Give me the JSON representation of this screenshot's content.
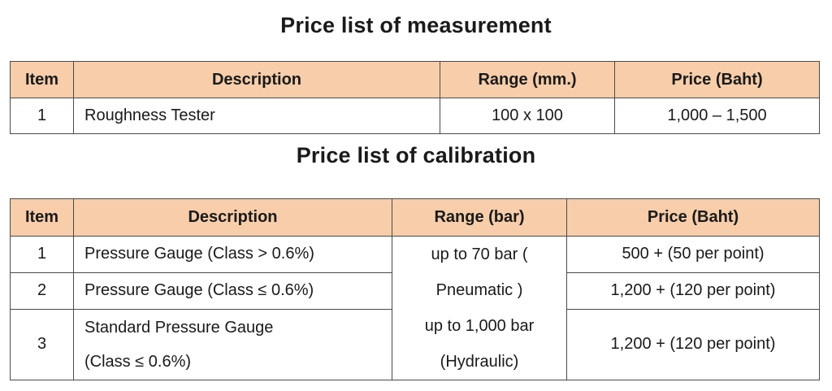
{
  "measurement": {
    "title": "Price list of measurement",
    "headers": [
      "Item",
      "Description",
      "Range (mm.)",
      "Price (Baht)"
    ],
    "rows": [
      {
        "item": "1",
        "description": "Roughness Tester",
        "range": "100 x 100",
        "price": "1,000 – 1,500"
      }
    ]
  },
  "calibration": {
    "title": "Price list of calibration",
    "headers": [
      "Item",
      "Description",
      "Range (bar)",
      "Price (Baht)"
    ],
    "rows": [
      {
        "item": "1",
        "description": "Pressure Gauge (Class > 0.6%)",
        "price": "500 + (50 per point)"
      },
      {
        "item": "2",
        "description": "Pressure Gauge (Class ≤ 0.6%)",
        "price": "1,200 + (120 per point)"
      },
      {
        "item": "3",
        "description_line1": "Standard Pressure Gauge",
        "description_line2": "(Class ≤ 0.6%)",
        "price": "1,200 + (120 per point)"
      }
    ],
    "range_lines": [
      "up to 70 bar (",
      "Pneumatic )",
      "up to 1,000 bar",
      "(Hydraulic)"
    ]
  }
}
